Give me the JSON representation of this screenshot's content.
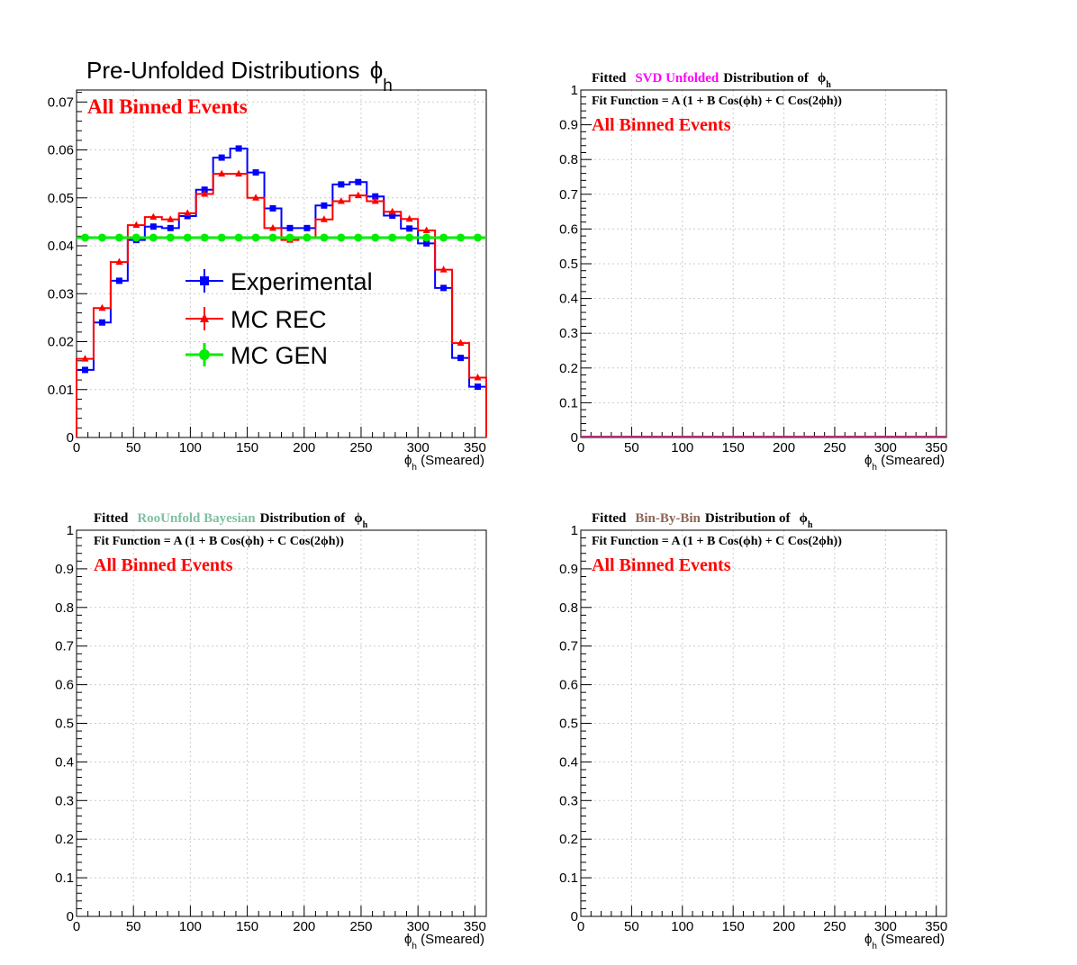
{
  "colors": {
    "experimental": "#0000ff",
    "mc_rec": "#ff0000",
    "mc_gen": "#00ee00",
    "annotation_red": "#ff0000",
    "svd_magenta": "#ff00ff",
    "bayes_green": "#7fbf9f",
    "binbybin_brown": "#8b6656",
    "grid": "#cccccc"
  },
  "chart_data": [
    {
      "type": "line",
      "title_main": "Pre-Unfolded Distributions",
      "title_symbol": "ϕ",
      "title_sub": "h",
      "annotation": "All Binned Events",
      "xlabel_symbol": "ϕ",
      "xlabel_sub": "h",
      "xlabel_text": "(Smeared)",
      "xlim": [
        0,
        360
      ],
      "ylim": [
        0,
        0.0725
      ],
      "xticks": [
        0,
        50,
        100,
        150,
        200,
        250,
        300,
        350
      ],
      "yticks": [
        0,
        0.01,
        0.02,
        0.03,
        0.04,
        0.05,
        0.06,
        0.07
      ],
      "ytick_labels": [
        "0",
        "0.01",
        "0.02",
        "0.03",
        "0.04",
        "0.05",
        "0.06",
        "0.07"
      ],
      "grid": true,
      "legend_position": "middle-left",
      "bin_edges": [
        0,
        15,
        30,
        45,
        60,
        75,
        90,
        105,
        120,
        135,
        150,
        165,
        180,
        195,
        210,
        225,
        240,
        255,
        270,
        285,
        300,
        315,
        330,
        345,
        360
      ],
      "series": [
        {
          "name": "Experimental",
          "marker": "square",
          "values": [
            0.0141,
            0.024,
            0.0327,
            0.0412,
            0.044,
            0.0437,
            0.0462,
            0.0517,
            0.0584,
            0.0603,
            0.0553,
            0.0478,
            0.0437,
            0.0437,
            0.0484,
            0.0528,
            0.0533,
            0.0503,
            0.0463,
            0.0436,
            0.0405,
            0.0312,
            0.0166,
            0.0106
          ]
        },
        {
          "name": "MC REC",
          "marker": "triangle",
          "values": [
            0.0164,
            0.027,
            0.0366,
            0.0443,
            0.046,
            0.0455,
            0.0468,
            0.0508,
            0.055,
            0.055,
            0.05,
            0.0437,
            0.0412,
            0.0418,
            0.0455,
            0.0493,
            0.0505,
            0.0493,
            0.0471,
            0.0456,
            0.0432,
            0.035,
            0.0197,
            0.0125
          ]
        },
        {
          "name": "MC GEN",
          "marker": "circle",
          "values": [
            0.0417,
            0.0417,
            0.0417,
            0.0417,
            0.0417,
            0.0417,
            0.0417,
            0.0417,
            0.0417,
            0.0417,
            0.0417,
            0.0417,
            0.0417,
            0.0417,
            0.0417,
            0.0417,
            0.0417,
            0.0417,
            0.0417,
            0.0417,
            0.0417,
            0.0417,
            0.0417,
            0.0417
          ]
        }
      ]
    },
    {
      "type": "line",
      "title_prefix": "Fitted",
      "title_method": "SVD Unfolded",
      "title_suffix": "Distribution of",
      "title_symbol": "ϕ",
      "title_sub": "h",
      "fit_function": "Fit Function = A (1 + B Cos(ϕh) + C Cos(2ϕh))",
      "annotation": "All Binned Events",
      "xlabel_symbol": "ϕ",
      "xlabel_sub": "h",
      "xlabel_text": "(Smeared)",
      "xlim": [
        0,
        360
      ],
      "ylim": [
        0,
        1
      ],
      "xticks": [
        0,
        50,
        100,
        150,
        200,
        250,
        300,
        350
      ],
      "yticks": [
        0,
        0.1,
        0.2,
        0.3,
        0.4,
        0.5,
        0.6,
        0.7,
        0.8,
        0.9,
        1
      ],
      "ytick_labels": [
        "0",
        "0.1",
        "0.2",
        "0.3",
        "0.4",
        "0.5",
        "0.6",
        "0.7",
        "0.8",
        "0.9",
        "1"
      ],
      "grid": true,
      "series": [
        {
          "values": [
            0,
            0,
            0,
            0,
            0,
            0,
            0,
            0,
            0,
            0,
            0,
            0,
            0,
            0,
            0,
            0,
            0,
            0,
            0,
            0,
            0,
            0,
            0,
            0
          ]
        }
      ]
    },
    {
      "type": "line",
      "title_prefix": "Fitted",
      "title_method": "RooUnfold Bayesian",
      "title_suffix": "Distribution of",
      "title_symbol": "ϕ",
      "title_sub": "h",
      "fit_function": "Fit Function = A (1 + B Cos(ϕh) + C Cos(2ϕh))",
      "annotation": "All Binned Events",
      "xlabel_symbol": "ϕ",
      "xlabel_sub": "h",
      "xlabel_text": "(Smeared)",
      "xlim": [
        0,
        360
      ],
      "ylim": [
        0,
        1
      ],
      "xticks": [
        0,
        50,
        100,
        150,
        200,
        250,
        300,
        350
      ],
      "yticks": [
        0,
        0.1,
        0.2,
        0.3,
        0.4,
        0.5,
        0.6,
        0.7,
        0.8,
        0.9,
        1
      ],
      "ytick_labels": [
        "0",
        "0.1",
        "0.2",
        "0.3",
        "0.4",
        "0.5",
        "0.6",
        "0.7",
        "0.8",
        "0.9",
        "1"
      ],
      "grid": true,
      "series": []
    },
    {
      "type": "line",
      "title_prefix": "Fitted",
      "title_method": "Bin-By-Bin",
      "title_suffix": "Distribution of",
      "title_symbol": "ϕ",
      "title_sub": "h",
      "fit_function": "Fit Function = A (1 + B Cos(ϕh) + C Cos(2ϕh))",
      "annotation": "All Binned Events",
      "xlabel_symbol": "ϕ",
      "xlabel_sub": "h",
      "xlabel_text": "(Smeared)",
      "xlim": [
        0,
        360
      ],
      "ylim": [
        0,
        1
      ],
      "xticks": [
        0,
        50,
        100,
        150,
        200,
        250,
        300,
        350
      ],
      "yticks": [
        0,
        0.1,
        0.2,
        0.3,
        0.4,
        0.5,
        0.6,
        0.7,
        0.8,
        0.9,
        1
      ],
      "ytick_labels": [
        "0",
        "0.1",
        "0.2",
        "0.3",
        "0.4",
        "0.5",
        "0.6",
        "0.7",
        "0.8",
        "0.9",
        "1"
      ],
      "grid": true,
      "series": []
    }
  ]
}
